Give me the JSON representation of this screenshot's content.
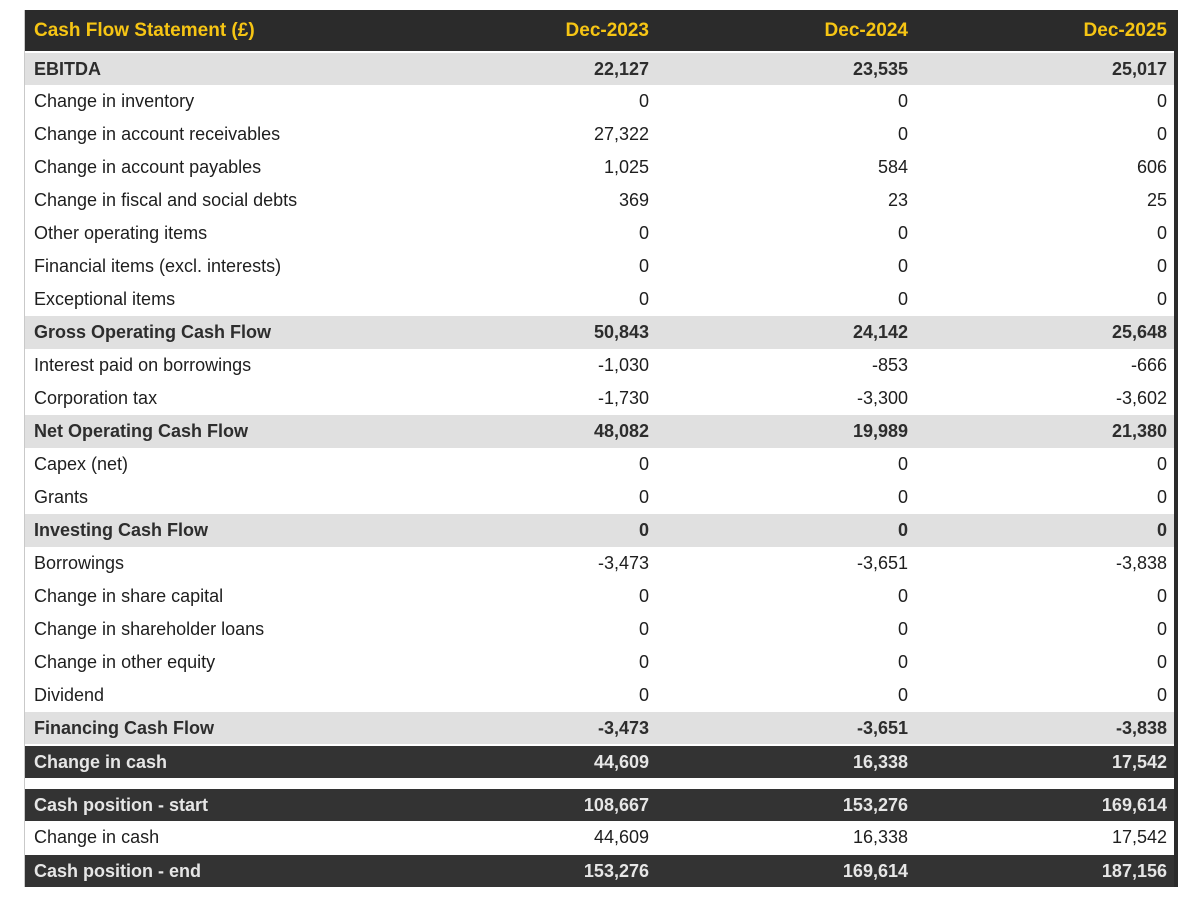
{
  "title": "Cash Flow Statement (£)",
  "theme": {
    "accent_yellow": "#F6C514",
    "header_bg": "#2B2B2B",
    "dark_row_bg": "#333333",
    "subtotal_row_bg": "#E0E0E0",
    "row_bg": "#FFFFFF",
    "dark_row_text": "#E6E6E6",
    "body_text": "#1E1E1E"
  },
  "chart_data": {
    "type": "table",
    "title": "Cash Flow Statement (£)",
    "columns": [
      "Dec-2023",
      "Dec-2024",
      "Dec-2025"
    ],
    "rows": [
      {
        "label": "EBITDA",
        "values": [
          "22,127",
          "23,535",
          "25,017"
        ],
        "style": "subtotal"
      },
      {
        "label": "Change in inventory",
        "values": [
          "0",
          "0",
          "0"
        ],
        "style": "normal"
      },
      {
        "label": "Change in account receivables",
        "values": [
          "27,322",
          "0",
          "0"
        ],
        "style": "normal"
      },
      {
        "label": "Change in account payables",
        "values": [
          "1,025",
          "584",
          "606"
        ],
        "style": "normal"
      },
      {
        "label": "Change in fiscal and social debts",
        "values": [
          "369",
          "23",
          "25"
        ],
        "style": "normal"
      },
      {
        "label": "Other operating items",
        "values": [
          "0",
          "0",
          "0"
        ],
        "style": "normal"
      },
      {
        "label": "Financial items (excl. interests)",
        "values": [
          "0",
          "0",
          "0"
        ],
        "style": "normal"
      },
      {
        "label": "Exceptional items",
        "values": [
          "0",
          "0",
          "0"
        ],
        "style": "normal"
      },
      {
        "label": "Gross Operating Cash Flow",
        "values": [
          "50,843",
          "24,142",
          "25,648"
        ],
        "style": "subtotal"
      },
      {
        "label": "Interest paid on borrowings",
        "values": [
          "-1,030",
          "-853",
          "-666"
        ],
        "style": "normal"
      },
      {
        "label": "Corporation tax",
        "values": [
          "-1,730",
          "-3,300",
          "-3,602"
        ],
        "style": "normal"
      },
      {
        "label": "Net Operating Cash Flow",
        "values": [
          "48,082",
          "19,989",
          "21,380"
        ],
        "style": "subtotal"
      },
      {
        "label": "Capex (net)",
        "values": [
          "0",
          "0",
          "0"
        ],
        "style": "normal"
      },
      {
        "label": "Grants",
        "values": [
          "0",
          "0",
          "0"
        ],
        "style": "normal"
      },
      {
        "label": "Investing Cash Flow",
        "values": [
          "0",
          "0",
          "0"
        ],
        "style": "subtotal"
      },
      {
        "label": "Borrowings",
        "values": [
          "-3,473",
          "-3,651",
          "-3,838"
        ],
        "style": "normal"
      },
      {
        "label": "Change in share capital",
        "values": [
          "0",
          "0",
          "0"
        ],
        "style": "normal"
      },
      {
        "label": "Change in shareholder loans",
        "values": [
          "0",
          "0",
          "0"
        ],
        "style": "normal"
      },
      {
        "label": "Change in other equity",
        "values": [
          "0",
          "0",
          "0"
        ],
        "style": "normal"
      },
      {
        "label": "Dividend",
        "values": [
          "0",
          "0",
          "0"
        ],
        "style": "normal"
      },
      {
        "label": "Financing Cash Flow",
        "values": [
          "-3,473",
          "-3,651",
          "-3,838"
        ],
        "style": "subtotal"
      },
      {
        "label": "Change in cash",
        "values": [
          "44,609",
          "16,338",
          "17,542"
        ],
        "style": "dark"
      },
      {
        "label": "",
        "values": [],
        "style": "spacer"
      },
      {
        "label": "Cash position - start",
        "values": [
          "108,667",
          "153,276",
          "169,614"
        ],
        "style": "dark"
      },
      {
        "label": "Change in cash",
        "values": [
          "44,609",
          "16,338",
          "17,542"
        ],
        "style": "normal"
      },
      {
        "label": "Cash position - end",
        "values": [
          "153,276",
          "169,614",
          "187,156"
        ],
        "style": "dark"
      }
    ]
  }
}
